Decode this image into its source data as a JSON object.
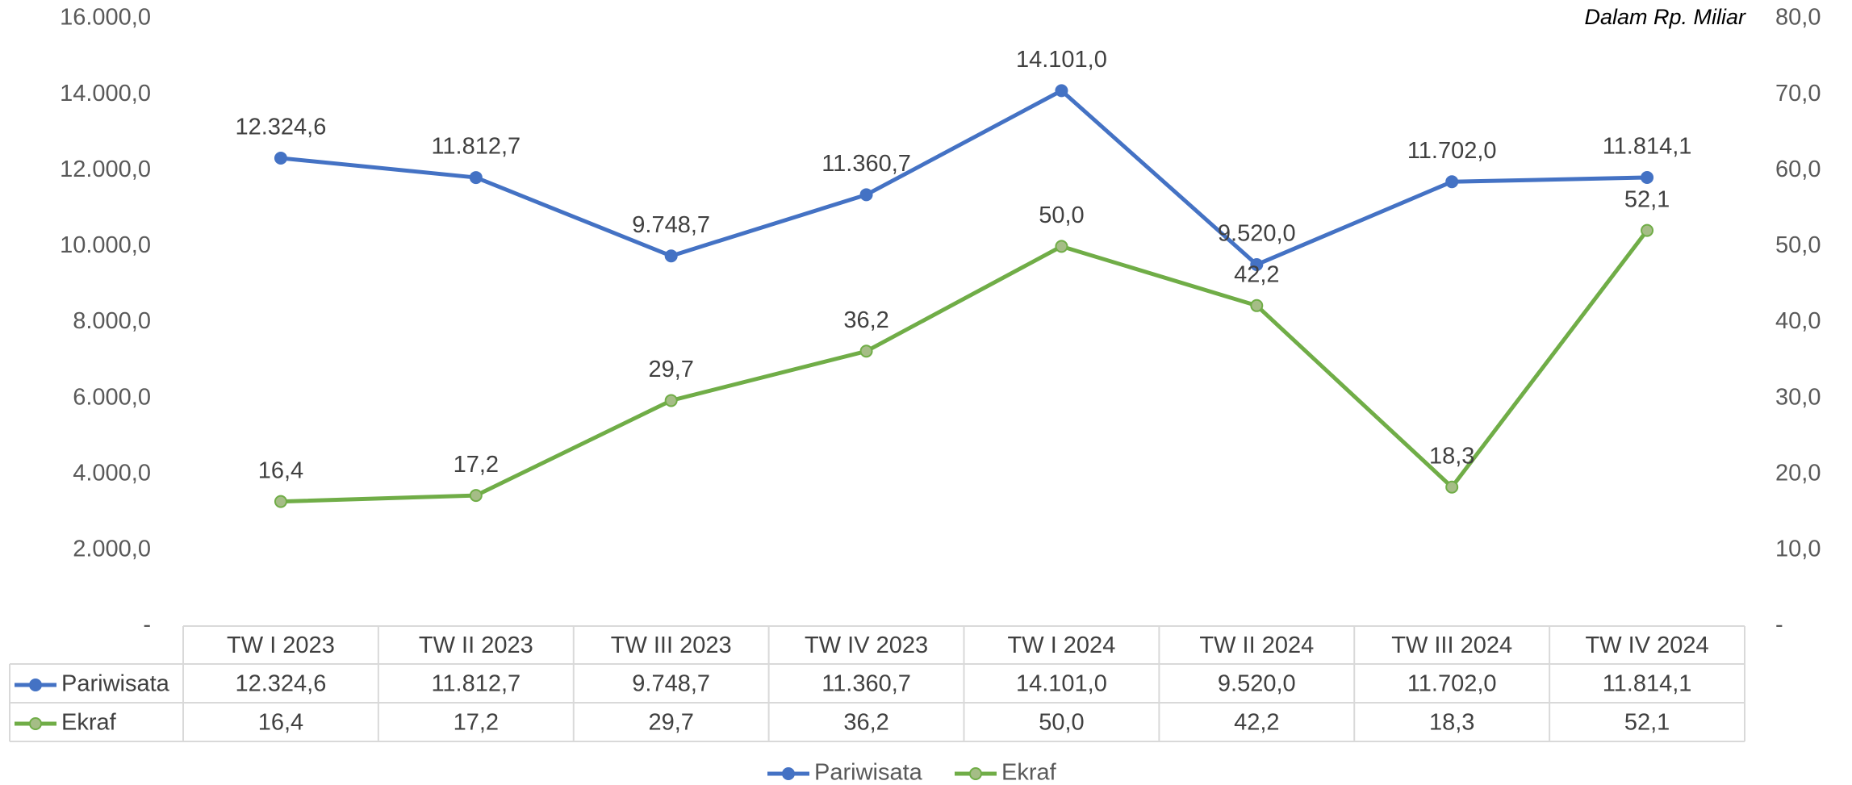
{
  "chart_data": {
    "type": "line",
    "annotation": "Dalam Rp. Miliar",
    "categories": [
      "TW I 2023",
      "TW II 2023",
      "TW III 2023",
      "TW IV 2023",
      "TW I 2024",
      "TW II 2024",
      "TW III 2024",
      "TW IV 2024"
    ],
    "series": [
      {
        "name": "Pariwisata",
        "color": "#4472c4",
        "marker_color": "#4472c4",
        "values": [
          12324.6,
          11812.7,
          9748.7,
          11360.7,
          14101.0,
          9520.0,
          11702.0,
          11814.1
        ],
        "value_labels": [
          "12.324,6",
          "11.812,7",
          "9.748,7",
          "11.360,7",
          "14.101,0",
          "9.520,0",
          "11.702,0",
          "11.814,1"
        ]
      },
      {
        "name": "Ekraf",
        "color": "#70ad47",
        "marker_color": "#a5bd86",
        "axis": "y2",
        "values": [
          16.4,
          17.2,
          29.7,
          36.2,
          50.0,
          42.2,
          18.3,
          52.1
        ],
        "value_labels": [
          "16,4",
          "17,2",
          "29,7",
          "36,2",
          "50,0",
          "42,2",
          "18,3",
          "52,1"
        ]
      }
    ],
    "ylim": [
      0,
      16000
    ],
    "yticks": [
      {
        "value": 0,
        "label": "-"
      },
      {
        "value": 2000,
        "label": "2.000,0"
      },
      {
        "value": 4000,
        "label": "4.000,0"
      },
      {
        "value": 6000,
        "label": "6.000,0"
      },
      {
        "value": 8000,
        "label": "8.000,0"
      },
      {
        "value": 10000,
        "label": "10.000,0"
      },
      {
        "value": 12000,
        "label": "12.000,0"
      },
      {
        "value": 14000,
        "label": "14.000,0"
      },
      {
        "value": 16000,
        "label": "16.000,0"
      }
    ],
    "y2lim": [
      0,
      80
    ],
    "y2ticks": [
      {
        "value": 0,
        "label": "-"
      },
      {
        "value": 10,
        "label": "10,0"
      },
      {
        "value": 20,
        "label": "20,0"
      },
      {
        "value": 30,
        "label": "30,0"
      },
      {
        "value": 40,
        "label": "40,0"
      },
      {
        "value": 50,
        "label": "50,0"
      },
      {
        "value": 60,
        "label": "60,0"
      },
      {
        "value": 70,
        "label": "70,0"
      },
      {
        "value": 80,
        "label": "80,0"
      }
    ],
    "grid": false,
    "legend": "bottom",
    "data_table": true
  }
}
